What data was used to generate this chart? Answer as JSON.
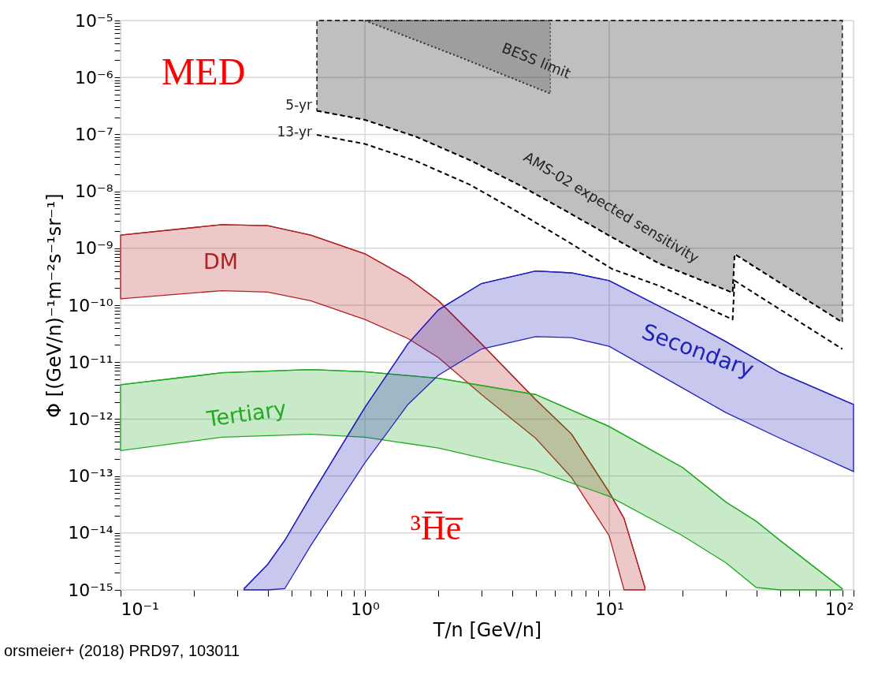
{
  "chart_data": {
    "type": "line",
    "xlabel": "T/n [GeV/n]",
    "ylabel": "Φ [(GeV/n)⁻¹m⁻²s⁻¹sr⁻¹]",
    "log": "xy",
    "grid": true,
    "legend": false,
    "marker": "none",
    "xlim": [
      0.1,
      100
    ],
    "ylim": [
      1e-15,
      1e-05
    ],
    "xticks": [
      {
        "value": 0.1,
        "label": "10⁻¹"
      },
      {
        "value": 1,
        "label": "10⁰"
      },
      {
        "value": 10,
        "label": "10¹"
      },
      {
        "value": 100,
        "label": "10²"
      },
      {
        "value": 0.2,
        "label": null
      },
      {
        "value": 0.3,
        "label": null
      },
      {
        "value": 0.4,
        "label": null
      },
      {
        "value": 0.5,
        "label": null
      },
      {
        "value": 0.6,
        "label": null
      },
      {
        "value": 0.7,
        "label": null
      },
      {
        "value": 0.8,
        "label": null
      },
      {
        "value": 0.9,
        "label": null
      },
      {
        "value": 2,
        "label": null
      },
      {
        "value": 3,
        "label": null
      },
      {
        "value": 4,
        "label": null
      },
      {
        "value": 5,
        "label": null
      },
      {
        "value": 6,
        "label": null
      },
      {
        "value": 7,
        "label": null
      },
      {
        "value": 8,
        "label": null
      },
      {
        "value": 9,
        "label": null
      },
      {
        "value": 20,
        "label": null
      },
      {
        "value": 30,
        "label": null
      },
      {
        "value": 40,
        "label": null
      },
      {
        "value": 50,
        "label": null
      },
      {
        "value": 60,
        "label": null
      },
      {
        "value": 70,
        "label": null
      },
      {
        "value": 80,
        "label": null
      },
      {
        "value": 90,
        "label": null
      }
    ],
    "yticks": [
      {
        "value": 1e-05,
        "label": "10⁻⁵"
      },
      {
        "value": 1e-06,
        "label": "10⁻⁶"
      },
      {
        "value": 1e-07,
        "label": "10⁻⁷"
      },
      {
        "value": 1e-08,
        "label": "10⁻⁸"
      },
      {
        "value": 1e-09,
        "label": "10⁻⁹"
      },
      {
        "value": 1e-10,
        "label": "10⁻¹⁰"
      },
      {
        "value": 1e-11,
        "label": "10⁻¹¹"
      },
      {
        "value": 1e-12,
        "label": "10⁻¹²"
      },
      {
        "value": 1e-13,
        "label": "10⁻¹³"
      },
      {
        "value": 1e-14,
        "label": "10⁻¹⁴"
      },
      {
        "value": 1e-15,
        "label": "10⁻¹⁵"
      },
      {
        "value": 2e-15,
        "label": null
      },
      {
        "value": 3e-15,
        "label": null
      },
      {
        "value": 4e-15,
        "label": null
      },
      {
        "value": 5e-15,
        "label": null
      },
      {
        "value": 6e-15,
        "label": null
      },
      {
        "value": 7e-15,
        "label": null
      },
      {
        "value": 8e-15,
        "label": null
      },
      {
        "value": 9e-15,
        "label": null
      },
      {
        "value": 2e-14,
        "label": null
      },
      {
        "value": 3e-14,
        "label": null
      },
      {
        "value": 4e-14,
        "label": null
      },
      {
        "value": 5e-14,
        "label": null
      },
      {
        "value": 6e-14,
        "label": null
      },
      {
        "value": 7e-14,
        "label": null
      },
      {
        "value": 8e-14,
        "label": null
      },
      {
        "value": 9e-14,
        "label": null
      },
      {
        "value": 2e-13,
        "label": null
      },
      {
        "value": 3e-13,
        "label": null
      },
      {
        "value": 4e-13,
        "label": null
      },
      {
        "value": 5e-13,
        "label": null
      },
      {
        "value": 6e-13,
        "label": null
      },
      {
        "value": 7e-13,
        "label": null
      },
      {
        "value": 8e-13,
        "label": null
      },
      {
        "value": 9e-13,
        "label": null
      },
      {
        "value": 2e-12,
        "label": null
      },
      {
        "value": 3e-12,
        "label": null
      },
      {
        "value": 4e-12,
        "label": null
      },
      {
        "value": 5e-12,
        "label": null
      },
      {
        "value": 6e-12,
        "label": null
      },
      {
        "value": 7e-12,
        "label": null
      },
      {
        "value": 8e-12,
        "label": null
      },
      {
        "value": 9e-12,
        "label": null
      },
      {
        "value": 2e-11,
        "label": null
      },
      {
        "value": 3e-11,
        "label": null
      },
      {
        "value": 4e-11,
        "label": null
      },
      {
        "value": 5e-11,
        "label": null
      },
      {
        "value": 6e-11,
        "label": null
      },
      {
        "value": 7e-11,
        "label": null
      },
      {
        "value": 8e-11,
        "label": null
      },
      {
        "value": 9e-11,
        "label": null
      },
      {
        "value": 2e-10,
        "label": null
      },
      {
        "value": 3e-10,
        "label": null
      },
      {
        "value": 4e-10,
        "label": null
      },
      {
        "value": 5e-10,
        "label": null
      },
      {
        "value": 6e-10,
        "label": null
      },
      {
        "value": 7e-10,
        "label": null
      },
      {
        "value": 8e-10,
        "label": null
      },
      {
        "value": 9e-10,
        "label": null
      },
      {
        "value": 2e-09,
        "label": null
      },
      {
        "value": 3e-09,
        "label": null
      },
      {
        "value": 4e-09,
        "label": null
      },
      {
        "value": 5e-09,
        "label": null
      },
      {
        "value": 6e-09,
        "label": null
      },
      {
        "value": 7e-09,
        "label": null
      },
      {
        "value": 8e-09,
        "label": null
      },
      {
        "value": 9e-09,
        "label": null
      },
      {
        "value": 2e-08,
        "label": null
      },
      {
        "value": 3e-08,
        "label": null
      },
      {
        "value": 4e-08,
        "label": null
      },
      {
        "value": 5e-08,
        "label": null
      },
      {
        "value": 6e-08,
        "label": null
      },
      {
        "value": 7e-08,
        "label": null
      },
      {
        "value": 8e-08,
        "label": null
      },
      {
        "value": 9e-08,
        "label": null
      },
      {
        "value": 2e-07,
        "label": null
      },
      {
        "value": 3e-07,
        "label": null
      },
      {
        "value": 4e-07,
        "label": null
      },
      {
        "value": 5e-07,
        "label": null
      },
      {
        "value": 6e-07,
        "label": null
      },
      {
        "value": 7e-07,
        "label": null
      },
      {
        "value": 8e-07,
        "label": null
      },
      {
        "value": 9e-07,
        "label": null
      },
      {
        "value": 2e-06,
        "label": null
      },
      {
        "value": 3e-06,
        "label": null
      },
      {
        "value": 4e-06,
        "label": null
      },
      {
        "value": 5e-06,
        "label": null
      },
      {
        "value": 6e-06,
        "label": null
      },
      {
        "value": 7e-06,
        "label": null
      },
      {
        "value": 8e-06,
        "label": null
      },
      {
        "value": 9e-06,
        "label": null
      }
    ],
    "series": [
      {
        "name": "5-yr",
        "type": "line",
        "color": "#000000",
        "line_style": "dashed",
        "x": [
          0.636,
          1,
          1.62,
          2.7,
          4.2,
          6.6,
          10.3,
          16,
          32,
          32.6,
          90
        ],
        "values": [
          2.6e-07,
          1.8e-07,
          9.1e-08,
          3.5e-08,
          1.35e-08,
          4.6e-09,
          1.55e-09,
          5.4e-10,
          1.66e-10,
          7.9e-10,
          5e-11
        ],
        "lower": [
          2.6e-07,
          1.8e-07,
          9.1e-08,
          3.5e-08,
          1.35e-08,
          4.6e-09,
          1.55e-09,
          5.4e-10,
          1.66e-10,
          7.9e-10,
          5e-11
        ],
        "upper": [
          1e-05,
          1e-05,
          1e-05,
          1e-05,
          1e-05,
          1e-05,
          1e-05,
          1e-05,
          1e-05,
          1e-05,
          1e-05
        ]
      },
      {
        "name": "BESS limit",
        "type": "line",
        "color": "#3a3a3a",
        "line_style": "dotted",
        "x": [
          1,
          2.43,
          5.74
        ],
        "values": [
          1e-05,
          2.3e-06,
          5.2e-07
        ],
        "lower": [
          1e-05,
          2.3e-06,
          5.2e-07
        ],
        "upper": [
          1e-05,
          1e-05,
          1e-05
        ]
      },
      {
        "name": "13-yr",
        "type": "line",
        "color": "#000000",
        "line_style": "dashed",
        "x": [
          0.636,
          1,
          1.62,
          2.7,
          4.2,
          6.6,
          10.3,
          16,
          32,
          32.6,
          90
        ],
        "values": [
          9.8e-08,
          6.8e-08,
          3.4e-08,
          1.3e-08,
          4.4e-09,
          1.4e-09,
          4.3e-10,
          2.2e-10,
          5.6e-11,
          2.7e-10,
          1.7e-11
        ]
      },
      {
        "name": "DM",
        "color": "#b22222",
        "x": [
          0.1,
          0.26,
          0.4,
          0.6,
          1,
          1.5,
          2,
          3,
          5,
          7,
          10,
          11.5,
          14
        ],
        "values": [
          1.7e-09,
          2.6e-09,
          2.5e-09,
          1.7e-09,
          8e-10,
          3e-10,
          1.2e-10,
          2.1e-11,
          2.2e-12,
          5.5e-13,
          5.2e-14,
          1.8e-14,
          1.1e-15
        ],
        "upper": [
          1.7e-09,
          2.6e-09,
          2.5e-09,
          1.7e-09,
          8e-10,
          3e-10,
          1.2e-10,
          2.1e-11,
          2.2e-12,
          5.5e-13,
          5.2e-14,
          1.8e-14,
          1.1e-15
        ],
        "lower": [
          1.3e-10,
          1.8e-10,
          1.7e-10,
          1.2e-10,
          5.6e-11,
          2.6e-11,
          1.2e-11,
          2.7e-12,
          4.6e-13,
          9.5e-14,
          8.9e-15,
          1e-15,
          1e-15
        ]
      },
      {
        "name": "Tertiary",
        "color": "#22aa22",
        "x": [
          0.1,
          0.26,
          0.6,
          1,
          2,
          5,
          10,
          20,
          30,
          40,
          50,
          90
        ],
        "values": [
          4e-12,
          6.5e-12,
          7.4e-12,
          6.8e-12,
          5.2e-12,
          2.7e-12,
          7.4e-13,
          1.4e-13,
          3.5e-14,
          1.6e-14,
          7.4e-15,
          1.05e-15
        ],
        "upper": [
          4e-12,
          6.5e-12,
          7.4e-12,
          6.8e-12,
          5.2e-12,
          2.7e-12,
          7.4e-13,
          1.4e-13,
          3.5e-14,
          1.6e-14,
          7.4e-15,
          1.05e-15
        ],
        "lower": [
          2.8e-13,
          4.8e-13,
          5.4e-13,
          4.8e-13,
          3.1e-13,
          1.26e-13,
          4.4e-14,
          8.9e-15,
          3e-15,
          1.1e-15,
          1e-15,
          1e-15
        ]
      },
      {
        "name": "Secondary",
        "color": "#2222bb",
        "x": [
          0.32,
          0.4,
          0.47,
          0.6,
          1,
          1.5,
          2,
          3,
          5,
          7,
          10,
          20,
          30,
          50,
          100
        ],
        "values": [
          1.05e-15,
          2.8e-15,
          7.4e-15,
          4.4e-14,
          1.6e-12,
          2.1e-11,
          8.3e-11,
          2.4e-10,
          4e-10,
          3.7e-10,
          2.7e-10,
          5.9e-11,
          2.3e-11,
          6.5e-12,
          1.8e-12
        ],
        "upper": [
          1.05e-15,
          2.8e-15,
          7.4e-15,
          4.4e-14,
          1.6e-12,
          2.1e-11,
          8.3e-11,
          2.4e-10,
          4e-10,
          3.7e-10,
          2.7e-10,
          5.9e-11,
          2.3e-11,
          6.5e-12,
          1.8e-12
        ],
        "lower": [
          1e-15,
          1e-15,
          1.05e-15,
          6e-15,
          1.7e-13,
          1.8e-12,
          5.9e-12,
          1.7e-11,
          2.8e-11,
          2.7e-11,
          1.9e-11,
          3.5e-12,
          1.3e-12,
          4.6e-13,
          1.2e-13
        ]
      }
    ],
    "annotations": [
      "MED",
      "³H̅e̅",
      "AMS-02 expected sensitivity",
      "orsmeier+ (2018) PRD97, 103011"
    ]
  }
}
